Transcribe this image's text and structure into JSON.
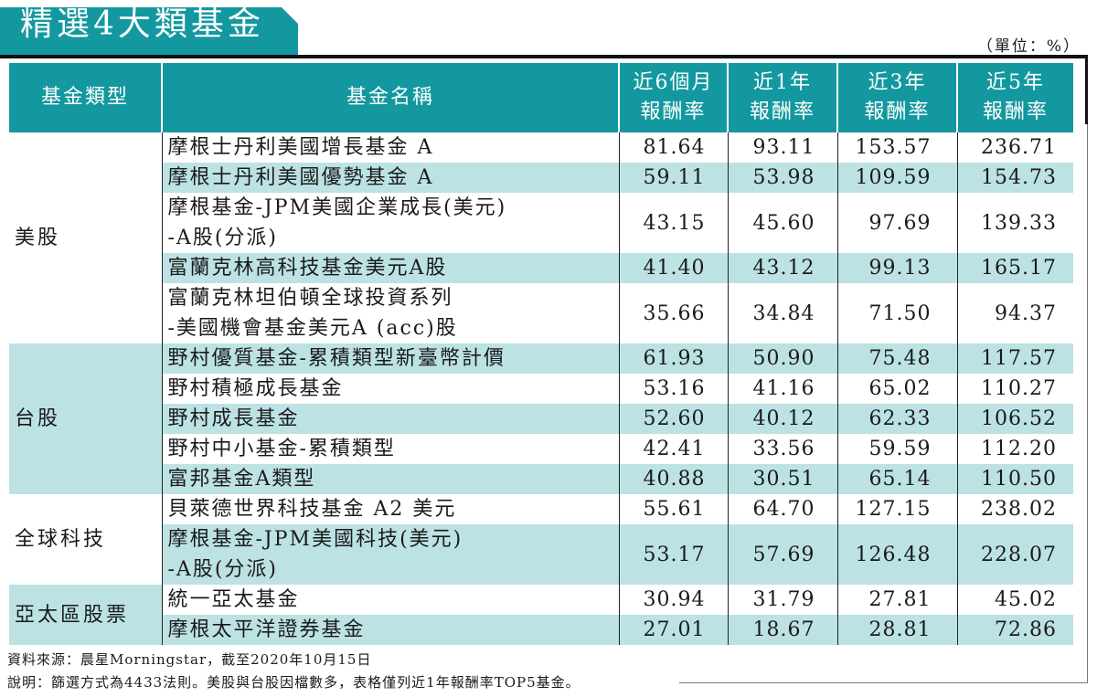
{
  "title": "精選4大類基金",
  "unit_label": "（單位：%）",
  "colors": {
    "header_teal": "#14989f",
    "row_shade": "#bce2e4",
    "text": "#1a1a1a"
  },
  "table": {
    "headers": {
      "type": "基金類型",
      "name": "基金名稱",
      "r6m_line1": "近6個月",
      "r6m_line2": "報酬率",
      "r1y_line1": "近1年",
      "r1y_line2": "報酬率",
      "r3y_line1": "近3年",
      "r3y_line2": "報酬率",
      "r5y_line1": "近5年",
      "r5y_line2": "報酬率"
    },
    "groups": [
      {
        "type": "美股",
        "funds": [
          {
            "name_line1": "摩根士丹利美國增長基金 A",
            "name_line2": "",
            "r6m": "81.64",
            "r1y": "93.11",
            "r3y": "153.57",
            "r5y": "236.71"
          },
          {
            "name_line1": "摩根士丹利美國優勢基金 A",
            "name_line2": "",
            "r6m": "59.11",
            "r1y": "53.98",
            "r3y": "109.59",
            "r5y": "154.73"
          },
          {
            "name_line1": "摩根基金-JPM美國企業成長(美元)",
            "name_line2": "-A股(分派)",
            "r6m": "43.15",
            "r1y": "45.60",
            "r3y": "97.69",
            "r5y": "139.33"
          },
          {
            "name_line1": "富蘭克林高科技基金美元A股",
            "name_line2": "",
            "r6m": "41.40",
            "r1y": "43.12",
            "r3y": "99.13",
            "r5y": "165.17"
          },
          {
            "name_line1": "富蘭克林坦伯頓全球投資系列",
            "name_line2": "-美國機會基金美元A (acc)股",
            "r6m": "35.66",
            "r1y": "34.84",
            "r3y": "71.50",
            "r5y": "94.37"
          }
        ]
      },
      {
        "type": "台股",
        "funds": [
          {
            "name_line1": "野村優質基金-累積類型新臺幣計價",
            "name_line2": "",
            "r6m": "61.93",
            "r1y": "50.90",
            "r3y": "75.48",
            "r5y": "117.57"
          },
          {
            "name_line1": "野村積極成長基金",
            "name_line2": "",
            "r6m": "53.16",
            "r1y": "41.16",
            "r3y": "65.02",
            "r5y": "110.27"
          },
          {
            "name_line1": "野村成長基金",
            "name_line2": "",
            "r6m": "52.60",
            "r1y": "40.12",
            "r3y": "62.33",
            "r5y": "106.52"
          },
          {
            "name_line1": "野村中小基金-累積類型",
            "name_line2": "",
            "r6m": "42.41",
            "r1y": "33.56",
            "r3y": "59.59",
            "r5y": "112.20"
          },
          {
            "name_line1": "富邦基金A類型",
            "name_line2": "",
            "r6m": "40.88",
            "r1y": "30.51",
            "r3y": "65.14",
            "r5y": "110.50"
          }
        ]
      },
      {
        "type": "全球科技",
        "funds": [
          {
            "name_line1": "貝萊德世界科技基金 A2 美元",
            "name_line2": "",
            "r6m": "55.61",
            "r1y": "64.70",
            "r3y": "127.15",
            "r5y": "238.02"
          },
          {
            "name_line1": "摩根基金-JPM美國科技(美元)",
            "name_line2": "-A股(分派)",
            "r6m": "53.17",
            "r1y": "57.69",
            "r3y": "126.48",
            "r5y": "228.07"
          }
        ]
      },
      {
        "type": "亞太區股票",
        "funds": [
          {
            "name_line1": "統一亞太基金",
            "name_line2": "",
            "r6m": "30.94",
            "r1y": "31.79",
            "r3y": "27.81",
            "r5y": "45.02"
          },
          {
            "name_line1": "摩根太平洋證券基金",
            "name_line2": "",
            "r6m": "27.01",
            "r1y": "18.67",
            "r3y": "28.81",
            "r5y": "72.86"
          }
        ]
      }
    ]
  },
  "notes": {
    "source": "資料來源：晨星Morningstar，截至2020年10月15日",
    "explanation": "說明：篩選方式為4433法則。美股與台股因檔數多，表格僅列近1年報酬率TOP5基金。"
  }
}
